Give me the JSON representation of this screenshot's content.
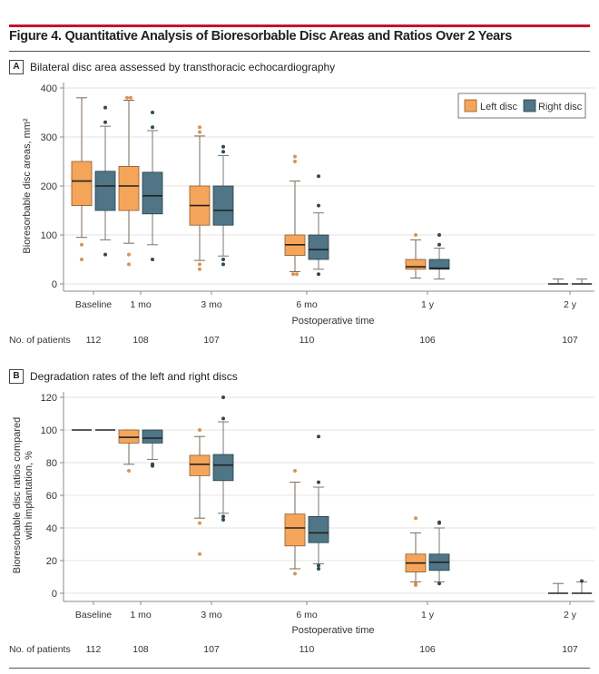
{
  "figure": {
    "title": "Figure 4. Quantitative Analysis of Bioresorbable Disc Areas and Ratios Over 2 Years",
    "accent_color": "#c8102e"
  },
  "legend": {
    "left_label": "Left disc",
    "right_label": "Right disc",
    "left_color": "#f5a55a",
    "right_color": "#4f7586"
  },
  "chart_data": [
    {
      "panel": "A",
      "type": "box",
      "title": "Bilateral disc area assessed by transthoracic echocardiography",
      "xlabel": "Postoperative time",
      "ylabel": "Bioresorbable disc areas, mm²",
      "ylim": [
        0,
        400
      ],
      "yticks": [
        0,
        100,
        200,
        300,
        400
      ],
      "grid": true,
      "legend_position": "top-right",
      "categories": [
        "Baseline",
        "1 mo",
        "3 mo",
        "6 mo",
        "1 y",
        "2 y"
      ],
      "patients_label": "No. of patients",
      "patients": [
        112,
        108,
        107,
        110,
        106,
        107
      ],
      "series": [
        {
          "name": "Left disc",
          "boxes": [
            {
              "min": 95,
              "q1": 160,
              "median": 210,
              "q3": 250,
              "max": 380,
              "outliers": [
                80,
                50
              ]
            },
            {
              "min": 83,
              "q1": 150,
              "median": 200,
              "q3": 240,
              "max": 375,
              "outliers": [
                380,
                380,
                60,
                40
              ]
            },
            {
              "min": 48,
              "q1": 120,
              "median": 160,
              "q3": 200,
              "max": 302,
              "outliers": [
                320,
                310,
                40,
                30
              ]
            },
            {
              "min": 25,
              "q1": 58,
              "median": 80,
              "q3": 100,
              "max": 210,
              "outliers": [
                260,
                250,
                20,
                20
              ]
            },
            {
              "min": 12,
              "q1": 30,
              "median": 35,
              "q3": 50,
              "max": 90,
              "outliers": [
                100
              ]
            },
            {
              "min": 0,
              "q1": 0,
              "median": 0,
              "q3": 0,
              "max": 10,
              "outliers": []
            }
          ]
        },
        {
          "name": "Right disc",
          "boxes": [
            {
              "min": 90,
              "q1": 150,
              "median": 200,
              "q3": 230,
              "max": 322,
              "outliers": [
                360,
                330,
                60
              ]
            },
            {
              "min": 80,
              "q1": 143,
              "median": 180,
              "q3": 228,
              "max": 313,
              "outliers": [
                350,
                320,
                50
              ]
            },
            {
              "min": 57,
              "q1": 120,
              "median": 150,
              "q3": 200,
              "max": 262,
              "outliers": [
                280,
                270,
                50,
                40
              ]
            },
            {
              "min": 30,
              "q1": 50,
              "median": 70,
              "q3": 100,
              "max": 145,
              "outliers": [
                220,
                160,
                20
              ]
            },
            {
              "min": 10,
              "q1": 30,
              "median": 32,
              "q3": 50,
              "max": 73,
              "outliers": [
                100,
                80
              ]
            },
            {
              "min": 0,
              "q1": 0,
              "median": 0,
              "q3": 0,
              "max": 10,
              "outliers": []
            }
          ]
        }
      ]
    },
    {
      "panel": "B",
      "type": "box",
      "title": "Degradation rates of the left and right discs",
      "xlabel": "Postoperative time",
      "ylabel": "Bioresorbable disc ratios compared with implantation, %",
      "ylim": [
        0,
        120
      ],
      "yticks": [
        0,
        20,
        40,
        60,
        80,
        100,
        120
      ],
      "grid": true,
      "categories": [
        "Baseline",
        "1 mo",
        "3 mo",
        "6 mo",
        "1 y",
        "2 y"
      ],
      "patients_label": "No. of patients",
      "patients": [
        112,
        108,
        107,
        110,
        106,
        107
      ],
      "series": [
        {
          "name": "Left disc",
          "boxes": [
            {
              "min": 100,
              "q1": 100,
              "median": 100,
              "q3": 100,
              "max": 100,
              "outliers": []
            },
            {
              "min": 79,
              "q1": 92,
              "median": 95.5,
              "q3": 100,
              "max": 100,
              "outliers": [
                75
              ]
            },
            {
              "min": 46,
              "q1": 72,
              "median": 79,
              "q3": 84.5,
              "max": 96,
              "outliers": [
                100,
                43,
                24
              ]
            },
            {
              "min": 15,
              "q1": 29,
              "median": 40,
              "q3": 48.5,
              "max": 68,
              "outliers": [
                75,
                12
              ]
            },
            {
              "min": 7,
              "q1": 13,
              "median": 18.5,
              "q3": 24,
              "max": 37,
              "outliers": [
                46,
                6,
                5
              ]
            },
            {
              "min": 0,
              "q1": 0,
              "median": 0,
              "q3": 0,
              "max": 6,
              "outliers": []
            }
          ]
        },
        {
          "name": "Right disc",
          "boxes": [
            {
              "min": 100,
              "q1": 100,
              "median": 100,
              "q3": 100,
              "max": 100,
              "outliers": []
            },
            {
              "min": 82,
              "q1": 92,
              "median": 95,
              "q3": 100,
              "max": 100,
              "outliers": [
                79,
                78
              ]
            },
            {
              "min": 49,
              "q1": 69,
              "median": 78.5,
              "q3": 85,
              "max": 105,
              "outliers": [
                120,
                107,
                47,
                45
              ]
            },
            {
              "min": 18,
              "q1": 31,
              "median": 37,
              "q3": 47,
              "max": 65,
              "outliers": [
                96,
                68,
                17,
                15
              ]
            },
            {
              "min": 7,
              "q1": 14,
              "median": 19,
              "q3": 24,
              "max": 40,
              "outliers": [
                43.5,
                43,
                6
              ]
            },
            {
              "min": 0,
              "q1": 0,
              "median": 0,
              "q3": 0,
              "max": 7,
              "outliers": [
                7.5
              ]
            }
          ]
        }
      ]
    }
  ]
}
